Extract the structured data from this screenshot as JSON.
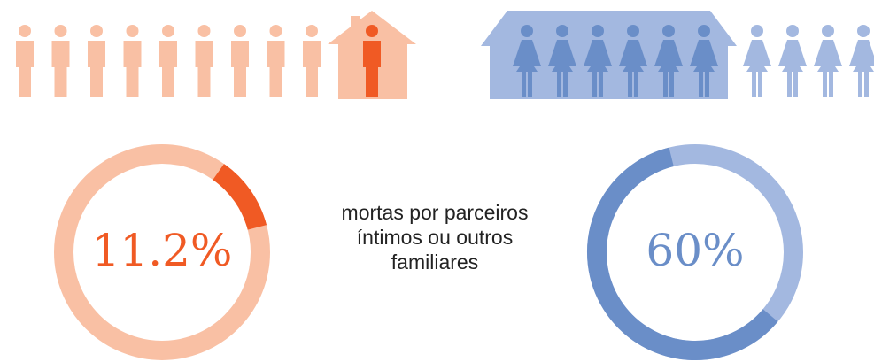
{
  "chart_data": [
    {
      "type": "pie",
      "values": [
        11.2
      ],
      "value_labels": [
        "11.2%"
      ],
      "color": "#f05a24",
      "rest_color": "#f9c0a4"
    },
    {
      "type": "pie",
      "values": [
        60
      ],
      "value_labels": [
        "60%"
      ],
      "color": "#6a8ec8",
      "rest_color": "#a3b8e0"
    }
  ],
  "caption_lines": [
    "mortas por parceiros",
    "íntimos ou outros",
    "familiares"
  ]
}
